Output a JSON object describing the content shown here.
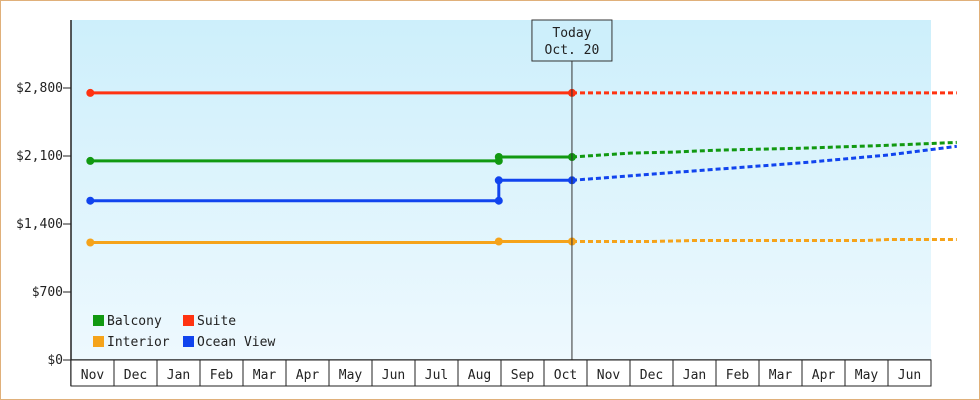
{
  "chart_data": {
    "type": "line",
    "x_labels": [
      "Nov",
      "Dec",
      "Jan",
      "Feb",
      "Mar",
      "Apr",
      "May",
      "Jun",
      "Jul",
      "Aug",
      "Sep",
      "Oct",
      "Nov",
      "Dec",
      "Jan",
      "Feb",
      "Mar",
      "Apr",
      "May",
      "Jun"
    ],
    "ylim": [
      0,
      3500
    ],
    "y_ticks": [
      0,
      700,
      1400,
      2100,
      2800
    ],
    "y_tick_labels": [
      "$0",
      "$700",
      "$1,400",
      "$2,100",
      "$2,800"
    ],
    "today": {
      "line1": "Today",
      "line2": "Oct. 20",
      "x": 11.15
    },
    "grid": false,
    "legend_placement": "bottom-left",
    "series": [
      {
        "name": "Suite",
        "color": "#ff3311",
        "history": [
          [
            -0.05,
            2750
          ],
          [
            11.15,
            2750
          ]
        ],
        "forecast": [
          [
            11.15,
            2750
          ],
          [
            20.1,
            2750
          ]
        ],
        "markers": [
          [
            -0.05,
            2750
          ],
          [
            11.15,
            2750
          ]
        ]
      },
      {
        "name": "Balcony",
        "color": "#119911",
        "history": [
          [
            -0.05,
            2050
          ],
          [
            9.45,
            2050
          ],
          [
            9.45,
            2090
          ],
          [
            11.15,
            2090
          ]
        ],
        "forecast": [
          [
            11.15,
            2090
          ],
          [
            12.5,
            2130
          ],
          [
            13.5,
            2140
          ],
          [
            14.5,
            2160
          ],
          [
            16.5,
            2180
          ],
          [
            18.5,
            2210
          ],
          [
            20.1,
            2240
          ]
        ],
        "markers": [
          [
            -0.05,
            2050
          ],
          [
            9.45,
            2050
          ],
          [
            9.45,
            2090
          ],
          [
            11.15,
            2090
          ]
        ]
      },
      {
        "name": "Ocean View",
        "color": "#1144ee",
        "history": [
          [
            -0.05,
            1640
          ],
          [
            9.45,
            1640
          ],
          [
            9.45,
            1850
          ],
          [
            11.15,
            1850
          ]
        ],
        "forecast": [
          [
            11.15,
            1850
          ],
          [
            13.5,
            1930
          ],
          [
            16.5,
            2030
          ],
          [
            18.5,
            2110
          ],
          [
            20.1,
            2200
          ]
        ],
        "markers": [
          [
            -0.05,
            1640
          ],
          [
            9.45,
            1640
          ],
          [
            9.45,
            1850
          ],
          [
            11.15,
            1850
          ]
        ]
      },
      {
        "name": "Interior",
        "color": "#f5a31a",
        "history": [
          [
            -0.05,
            1210
          ],
          [
            9.45,
            1210
          ],
          [
            9.45,
            1220
          ],
          [
            11.15,
            1220
          ]
        ],
        "forecast": [
          [
            11.15,
            1220
          ],
          [
            13.0,
            1220
          ],
          [
            14.0,
            1230
          ],
          [
            18.0,
            1230
          ],
          [
            18.5,
            1240
          ],
          [
            20.1,
            1240
          ]
        ],
        "markers": [
          [
            -0.05,
            1210
          ],
          [
            9.45,
            1220
          ],
          [
            11.15,
            1220
          ]
        ]
      }
    ],
    "legend": [
      {
        "label": "Balcony",
        "color": "#119911"
      },
      {
        "label": "Suite",
        "color": "#ff3311"
      },
      {
        "label": "Interior",
        "color": "#f5a31a"
      },
      {
        "label": "Ocean View",
        "color": "#1144ee"
      }
    ]
  }
}
